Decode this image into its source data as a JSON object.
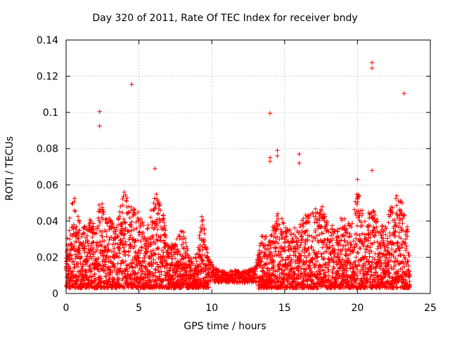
{
  "chart_data": {
    "type": "scatter",
    "title": "Day 320 of 2011, Rate Of TEC Index for receiver bndy",
    "xlabel": "GPS time / hours",
    "ylabel": "ROTI / TECUs",
    "xlim": [
      0,
      25
    ],
    "ylim": [
      0,
      0.14
    ],
    "xticks": [
      "0",
      "5",
      "10",
      "15",
      "20",
      "25"
    ],
    "yticks": [
      "0",
      "0.02",
      "0.04",
      "0.06",
      "0.08",
      "0.1",
      "0.12",
      "0.14"
    ],
    "grid": true,
    "marker": "+",
    "color": "#ff0000",
    "envelope": [
      {
        "x": 0.0,
        "y": 0.026
      },
      {
        "x": 0.5,
        "y": 0.059
      },
      {
        "x": 1.0,
        "y": 0.036
      },
      {
        "x": 1.5,
        "y": 0.042
      },
      {
        "x": 2.0,
        "y": 0.04
      },
      {
        "x": 2.3,
        "y": 0.052
      },
      {
        "x": 3.0,
        "y": 0.043
      },
      {
        "x": 3.5,
        "y": 0.04
      },
      {
        "x": 4.0,
        "y": 0.057
      },
      {
        "x": 4.5,
        "y": 0.05
      },
      {
        "x": 5.0,
        "y": 0.046
      },
      {
        "x": 5.5,
        "y": 0.034
      },
      {
        "x": 6.1,
        "y": 0.058
      },
      {
        "x": 6.6,
        "y": 0.048
      },
      {
        "x": 7.0,
        "y": 0.027
      },
      {
        "x": 7.5,
        "y": 0.028
      },
      {
        "x": 8.0,
        "y": 0.038
      },
      {
        "x": 8.5,
        "y": 0.02
      },
      {
        "x": 9.0,
        "y": 0.022
      },
      {
        "x": 9.3,
        "y": 0.046
      },
      {
        "x": 9.7,
        "y": 0.024
      },
      {
        "x": 10.0,
        "y": 0.016
      },
      {
        "x": 10.5,
        "y": 0.013
      },
      {
        "x": 11.0,
        "y": 0.012
      },
      {
        "x": 11.5,
        "y": 0.013
      },
      {
        "x": 12.0,
        "y": 0.012
      },
      {
        "x": 12.5,
        "y": 0.013
      },
      {
        "x": 13.0,
        "y": 0.015
      },
      {
        "x": 13.5,
        "y": 0.035
      },
      {
        "x": 14.0,
        "y": 0.031
      },
      {
        "x": 14.5,
        "y": 0.047
      },
      {
        "x": 15.0,
        "y": 0.039
      },
      {
        "x": 15.5,
        "y": 0.035
      },
      {
        "x": 16.0,
        "y": 0.04
      },
      {
        "x": 16.5,
        "y": 0.044
      },
      {
        "x": 17.0,
        "y": 0.046
      },
      {
        "x": 17.5,
        "y": 0.052
      },
      {
        "x": 18.0,
        "y": 0.038
      },
      {
        "x": 18.5,
        "y": 0.038
      },
      {
        "x": 19.0,
        "y": 0.044
      },
      {
        "x": 19.5,
        "y": 0.038
      },
      {
        "x": 20.0,
        "y": 0.063
      },
      {
        "x": 20.5,
        "y": 0.04
      },
      {
        "x": 21.0,
        "y": 0.05
      },
      {
        "x": 21.5,
        "y": 0.038
      },
      {
        "x": 22.0,
        "y": 0.04
      },
      {
        "x": 22.5,
        "y": 0.054
      },
      {
        "x": 23.0,
        "y": 0.052
      },
      {
        "x": 23.6,
        "y": 0.03
      }
    ],
    "outliers": [
      {
        "x": 2.3,
        "y": 0.1005
      },
      {
        "x": 2.3,
        "y": 0.0925
      },
      {
        "x": 4.5,
        "y": 0.1155
      },
      {
        "x": 6.1,
        "y": 0.069
      },
      {
        "x": 14.0,
        "y": 0.0995
      },
      {
        "x": 14.0,
        "y": 0.075
      },
      {
        "x": 14.0,
        "y": 0.073
      },
      {
        "x": 14.5,
        "y": 0.079
      },
      {
        "x": 14.5,
        "y": 0.076
      },
      {
        "x": 16.0,
        "y": 0.077
      },
      {
        "x": 16.0,
        "y": 0.072
      },
      {
        "x": 20.0,
        "y": 0.063
      },
      {
        "x": 21.0,
        "y": 0.1275
      },
      {
        "x": 21.0,
        "y": 0.1245
      },
      {
        "x": 21.0,
        "y": 0.068
      },
      {
        "x": 23.2,
        "y": 0.1105
      },
      {
        "x": 23.0,
        "y": 0.051
      },
      {
        "x": 22.7,
        "y": 0.054
      }
    ]
  }
}
